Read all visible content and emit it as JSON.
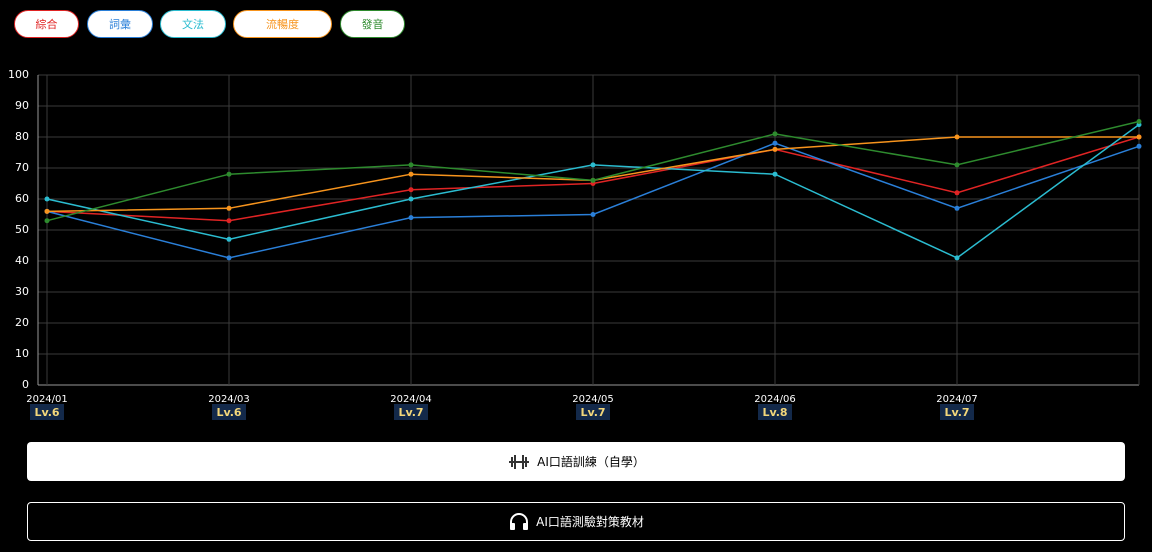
{
  "chart_data": {
    "type": "line",
    "categories": [
      "2024/01",
      "2024/03",
      "2024/04",
      "2024/05",
      "2024/06",
      "2024/07",
      null
    ],
    "level_labels": [
      "Lv.6",
      "Lv.6",
      "Lv.7",
      "Lv.7",
      "Lv.8",
      "Lv.7",
      null
    ],
    "series": [
      {
        "name": "綜合",
        "color": "#e02424",
        "values": [
          56,
          53,
          63,
          65,
          76,
          62,
          80
        ]
      },
      {
        "name": "詞彙",
        "color": "#2a7fd8",
        "values": [
          56,
          41,
          54,
          55,
          78,
          57,
          77
        ]
      },
      {
        "name": "文法",
        "color": "#2bbcd0",
        "values": [
          60,
          47,
          60,
          71,
          68,
          41,
          84
        ]
      },
      {
        "name": "流暢度",
        "color": "#f7941d",
        "values": [
          56,
          57,
          68,
          66,
          76,
          80,
          80
        ]
      },
      {
        "name": "發音",
        "color": "#2e8b2e",
        "values": [
          53,
          68,
          71,
          66,
          81,
          71,
          85
        ]
      }
    ],
    "ylim": [
      0,
      100
    ],
    "yticks": [
      0,
      10,
      20,
      30,
      40,
      50,
      60,
      70,
      80,
      90,
      100
    ],
    "grid": true
  },
  "buttons": [
    "AI口語訓練（自學）",
    "AI口語測驗對策教材"
  ]
}
